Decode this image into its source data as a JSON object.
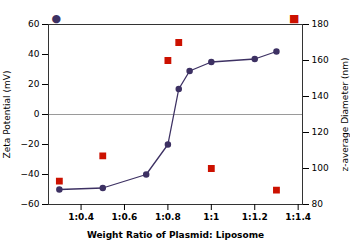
{
  "chart_data": {
    "type": "line",
    "xlabel": "Weight Ratio of Plasmid: Liposome",
    "ylabel": "Zeta Potential (mV)",
    "y2label": "z-average Diameter (nm)",
    "xlim": [
      0.25,
      1.42
    ],
    "xticks": [
      {
        "value": 0.4,
        "label": "1:0.4"
      },
      {
        "value": 0.6,
        "label": "1:0.6"
      },
      {
        "value": 0.8,
        "label": "1:0.8"
      },
      {
        "value": 1.0,
        "label": "1:1"
      },
      {
        "value": 1.2,
        "label": "1:1.2"
      },
      {
        "value": 1.4,
        "label": "1:1.4"
      }
    ],
    "ylim": [
      -60,
      60
    ],
    "yticks": [
      -60,
      -40,
      -20,
      0,
      20,
      40,
      60
    ],
    "y2lim": [
      80,
      180
    ],
    "y2ticks": [
      80,
      100,
      120,
      140,
      160,
      180
    ],
    "series": [
      {
        "type": "line",
        "marker": "circle",
        "color": "#3d3163",
        "x": [
          0.3,
          0.5,
          0.7,
          0.8,
          0.85,
          0.9,
          1.0,
          1.2,
          1.3
        ],
        "values": [
          -50,
          -49,
          -40,
          -20,
          17,
          29,
          35,
          37,
          42
        ]
      },
      {
        "type": "scatter",
        "marker": "square",
        "color": "#cc1100",
        "axis": "y2",
        "x": [
          0.3,
          0.5,
          0.8,
          0.85,
          1.0,
          1.3
        ],
        "values": [
          93,
          107,
          160,
          170,
          100,
          88
        ]
      }
    ],
    "annotations": [
      {
        "text": "●",
        "color": "#3d3163"
      },
      {
        "text": "■",
        "color": "#cc1100"
      },
      {
        "y": 0,
        "color": "gray"
      }
    ]
  }
}
